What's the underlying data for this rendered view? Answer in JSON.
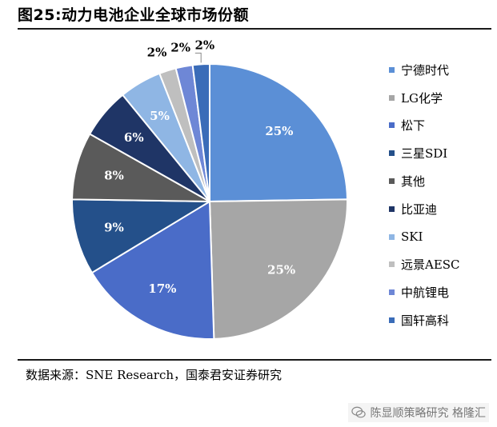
{
  "header": {
    "title": "图25:动力电池企业全球市场份额"
  },
  "footer": {
    "source": "数据来源：SNE Research，国泰君安证券研究",
    "watermark": "陈显顺策略研究 格隆汇"
  },
  "chart_data": {
    "type": "pie",
    "title": "图25:动力电池企业全球市场份额",
    "legend_position": "right",
    "categories": [
      "宁德时代",
      "LG化学",
      "松下",
      "三星SDI",
      "其他",
      "比亚迪",
      "SKI",
      "远景AESC",
      "中航锂电",
      "国轩高科"
    ],
    "values": [
      25,
      25,
      17,
      9,
      8,
      6,
      5,
      2,
      2,
      2
    ],
    "labels": [
      "25%",
      "25%",
      "17%",
      "9%",
      "8%",
      "6%",
      "5%",
      "2%",
      "2%",
      "2%"
    ],
    "colors": [
      "#5B8FD6",
      "#A6A6A6",
      "#4A6CC8",
      "#24508A",
      "#5A5A5A",
      "#1F3566",
      "#8FB6E4",
      "#BFBFBF",
      "#6E87D6",
      "#3A6CB8"
    ],
    "label_colors": [
      "#ffffff",
      "#ffffff",
      "#ffffff",
      "#ffffff",
      "#ffffff",
      "#ffffff",
      "#ffffff",
      "#000000",
      "#000000",
      "#000000"
    ]
  }
}
